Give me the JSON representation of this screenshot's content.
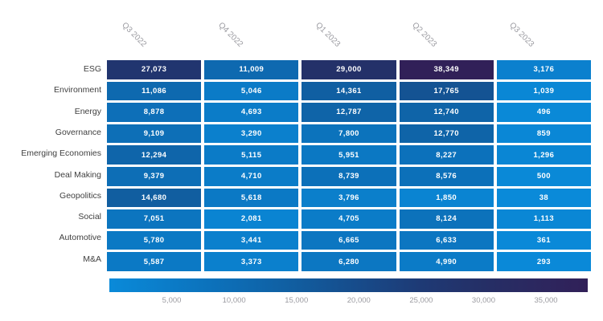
{
  "chart_data": {
    "type": "heatmap",
    "title": "",
    "columns": [
      "Q3 2022",
      "Q4 2022",
      "Q1 2023",
      "Q2 2023",
      "Q3 2023"
    ],
    "rows": [
      "ESG",
      "Environment",
      "Energy",
      "Governance",
      "Emerging Economies",
      "Deal Making",
      "Geopolitics",
      "Social",
      "Automotive",
      "M&A"
    ],
    "series": [
      {
        "name": "ESG",
        "values": [
          27073,
          11009,
          29000,
          38349,
          3176
        ]
      },
      {
        "name": "Environment",
        "values": [
          11086,
          5046,
          14361,
          17765,
          1039
        ]
      },
      {
        "name": "Energy",
        "values": [
          8878,
          4693,
          12787,
          12740,
          496
        ]
      },
      {
        "name": "Governance",
        "values": [
          9109,
          3290,
          7800,
          12770,
          859
        ]
      },
      {
        "name": "Emerging Economies",
        "values": [
          12294,
          5115,
          5951,
          8227,
          1296
        ]
      },
      {
        "name": "Deal Making",
        "values": [
          9379,
          4710,
          8739,
          8576,
          500
        ]
      },
      {
        "name": "Geopolitics",
        "values": [
          14680,
          5618,
          3796,
          1850,
          38
        ]
      },
      {
        "name": "Social",
        "values": [
          7051,
          2081,
          4705,
          8124,
          1113
        ]
      },
      {
        "name": "Automotive",
        "values": [
          5780,
          3441,
          6665,
          6633,
          361
        ]
      },
      {
        "name": "M&A",
        "values": [
          5587,
          3373,
          6280,
          4990,
          293
        ]
      }
    ],
    "value_format": "thousands-comma",
    "colorbar": {
      "min": 0,
      "max": 38349,
      "tick_labels": [
        "5,000",
        "10,000",
        "15,000",
        "20,000",
        "25,000",
        "30,000",
        "35,000"
      ],
      "tick_values": [
        5000,
        10000,
        15000,
        20000,
        25000,
        30000,
        35000
      ],
      "gradient_stops": [
        {
          "value": 0,
          "color": "#0a8ad9"
        },
        {
          "value": 5000,
          "color": "#0b7bc7"
        },
        {
          "value": 10000,
          "color": "#0d6cb4"
        },
        {
          "value": 15000,
          "color": "#115d9f"
        },
        {
          "value": 20000,
          "color": "#174b8a"
        },
        {
          "value": 25000,
          "color": "#1e3a75"
        },
        {
          "value": 30000,
          "color": "#252f66"
        },
        {
          "value": 35000,
          "color": "#2d265e"
        },
        {
          "value": 38349,
          "color": "#312058"
        }
      ]
    },
    "layout": {
      "legend_position": "bottom",
      "grid": "off",
      "cell_text_color": "#ffffff",
      "row_label_color": "#404040",
      "column_label_color": "#9b9ba1",
      "tick_label_color": "#9b9ba1",
      "background": "#ffffff"
    }
  }
}
